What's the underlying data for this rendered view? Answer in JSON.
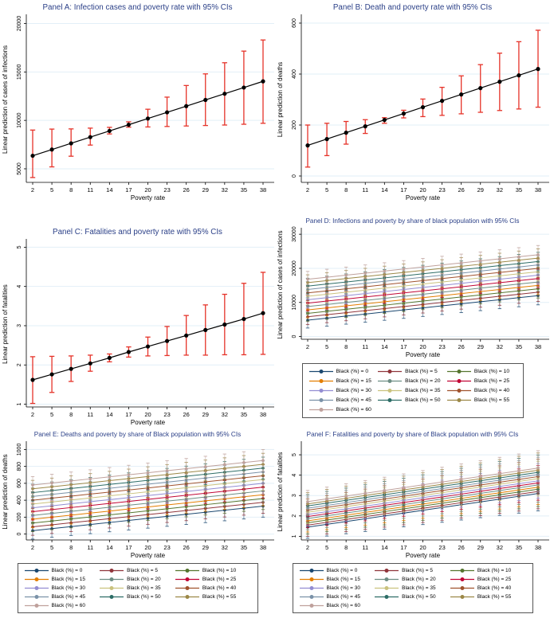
{
  "colors": {
    "background": "#ffffff",
    "title": "#2a3f87",
    "grid": "#e2eff7",
    "axis": "#000000",
    "ci_red": "#e63329",
    "point_black": "#000000"
  },
  "chart_data": [
    {
      "id": "A",
      "type": "ci-line",
      "title": "Panel A: Infection cases and poverty rate with 95% CIs",
      "xlabel": "Poverty rate",
      "ylabel": "Linear prediction of cases of infections",
      "x": [
        2,
        5,
        8,
        11,
        14,
        17,
        20,
        23,
        26,
        29,
        32,
        35,
        38
      ],
      "values": [
        6350,
        6990,
        7630,
        8270,
        8910,
        9550,
        10190,
        10830,
        11470,
        12110,
        12750,
        13390,
        14030
      ],
      "ci_low": [
        4100,
        5200,
        6300,
        7450,
        8600,
        9300,
        9320,
        9370,
        9420,
        9470,
        9520,
        9600,
        9700
      ],
      "ci_high": [
        9000,
        9100,
        9120,
        9200,
        9280,
        9850,
        11150,
        12400,
        13600,
        14800,
        15950,
        17150,
        18300
      ],
      "yticks": [
        5000,
        10000,
        15000,
        20000
      ],
      "ylim": [
        3600,
        20700
      ],
      "ci_color": "#e63329",
      "line_color": "#000000",
      "grid": true
    },
    {
      "id": "B",
      "type": "ci-line",
      "title": "Panel B: Death and poverty rate with 95% CIs",
      "xlabel": "Poverty rate",
      "ylabel": "Linear prediction of deaths",
      "x": [
        2,
        5,
        8,
        11,
        14,
        17,
        20,
        23,
        26,
        29,
        32,
        35,
        38
      ],
      "values": [
        120,
        145,
        170,
        195,
        220,
        245,
        270,
        295,
        320,
        345,
        370,
        395,
        420
      ],
      "ci_low": [
        35,
        80,
        125,
        167,
        207,
        228,
        233,
        238,
        244,
        250,
        257,
        263,
        270
      ],
      "ci_high": [
        200,
        207,
        214,
        221,
        229,
        258,
        302,
        348,
        393,
        437,
        482,
        527,
        572
      ],
      "yticks": [
        0,
        200,
        400,
        600
      ],
      "ylim": [
        -25,
        625
      ],
      "ci_color": "#e63329",
      "line_color": "#000000",
      "grid": true
    },
    {
      "id": "C",
      "type": "ci-line",
      "title": "Panel C: Fatalities and poverty rate with 95% CIs",
      "xlabel": "Poverty rate",
      "ylabel": "Linear prediction of fatalities",
      "x": [
        2,
        5,
        8,
        11,
        14,
        17,
        20,
        23,
        26,
        29,
        32,
        35,
        38
      ],
      "values": [
        1.62,
        1.76,
        1.9,
        2.04,
        2.18,
        2.33,
        2.47,
        2.61,
        2.75,
        2.89,
        3.03,
        3.17,
        3.32
      ],
      "ci_low": [
        1.02,
        1.3,
        1.58,
        1.84,
        2.08,
        2.2,
        2.23,
        2.24,
        2.25,
        2.25,
        2.26,
        2.26,
        2.27
      ],
      "ci_high": [
        2.21,
        2.22,
        2.23,
        2.25,
        2.28,
        2.46,
        2.71,
        2.98,
        3.26,
        3.53,
        3.8,
        4.08,
        4.36
      ],
      "yticks": [
        1,
        2,
        3,
        4,
        5
      ],
      "ylim": [
        0.93,
        5.15
      ],
      "ci_color": "#e63329",
      "line_color": "#000000",
      "grid": true
    },
    {
      "id": "D",
      "type": "multi-line-ci",
      "title": "Panel D: Infections and poverty by share of black population with 95% CIs",
      "xlabel": "Poverty rate",
      "ylabel": "Linear prediction of cases of infections",
      "x": [
        2,
        5,
        8,
        11,
        14,
        17,
        20,
        23,
        26,
        29,
        32,
        35,
        38
      ],
      "yticks": [
        0,
        10000,
        20000,
        30000
      ],
      "ylim": [
        -800,
        31200
      ],
      "ci_hw_start": 2300,
      "ci_hw_end": 2700,
      "series": [
        {
          "label": "Black (%) = 0",
          "color": "#1a476f",
          "start": 4800,
          "end": 12000
        },
        {
          "label": "Black (%) = 5",
          "color": "#90353b",
          "start": 5800,
          "end": 13000
        },
        {
          "label": "Black (%) = 10",
          "color": "#55752f",
          "start": 6800,
          "end": 14000
        },
        {
          "label": "Black (%) = 15",
          "color": "#e37e00",
          "start": 7800,
          "end": 15000
        },
        {
          "label": "Black (%) = 20",
          "color": "#6e8e84",
          "start": 8800,
          "end": 16000
        },
        {
          "label": "Black (%) = 25",
          "color": "#c10534",
          "start": 9800,
          "end": 17000
        },
        {
          "label": "Black (%) = 30",
          "color": "#938dd2",
          "start": 10800,
          "end": 18000
        },
        {
          "label": "Black (%) = 35",
          "color": "#cac27e",
          "start": 11800,
          "end": 19000
        },
        {
          "label": "Black (%) = 40",
          "color": "#a0522d",
          "start": 12800,
          "end": 20000
        },
        {
          "label": "Black (%) = 45",
          "color": "#7b92a8",
          "start": 13800,
          "end": 21000
        },
        {
          "label": "Black (%) = 50",
          "color": "#2d6d66",
          "start": 14800,
          "end": 22000
        },
        {
          "label": "Black (%) = 55",
          "color": "#9c8847",
          "start": 15800,
          "end": 23000
        },
        {
          "label": "Black (%) = 60",
          "color": "#bfa19c",
          "start": 16800,
          "end": 24000
        }
      ],
      "grid": true,
      "legend_position": "below"
    },
    {
      "id": "E",
      "type": "multi-line-ci",
      "title": "Panel E: Deaths and poverty by share of Black population with 95% CIs",
      "xlabel": "Poverty rate",
      "ylabel": "Linear prediction of deaths",
      "x": [
        2,
        5,
        8,
        11,
        14,
        17,
        20,
        23,
        26,
        29,
        32,
        35,
        38
      ],
      "yticks": [
        0,
        200,
        400,
        600,
        800,
        1000
      ],
      "ylim": [
        -70,
        1070
      ],
      "ci_hw_start": 100,
      "ci_hw_end": 130,
      "series": [
        {
          "label": "Black (%) = 0",
          "color": "#1a476f",
          "start": 40,
          "end": 330
        },
        {
          "label": "Black (%) = 5",
          "color": "#90353b",
          "start": 85,
          "end": 375
        },
        {
          "label": "Black (%) = 10",
          "color": "#55752f",
          "start": 130,
          "end": 420
        },
        {
          "label": "Black (%) = 15",
          "color": "#e37e00",
          "start": 175,
          "end": 465
        },
        {
          "label": "Black (%) = 20",
          "color": "#6e8e84",
          "start": 220,
          "end": 510
        },
        {
          "label": "Black (%) = 25",
          "color": "#c10534",
          "start": 265,
          "end": 555
        },
        {
          "label": "Black (%) = 30",
          "color": "#938dd2",
          "start": 310,
          "end": 600
        },
        {
          "label": "Black (%) = 35",
          "color": "#cac27e",
          "start": 355,
          "end": 645
        },
        {
          "label": "Black (%) = 40",
          "color": "#a0522d",
          "start": 400,
          "end": 690
        },
        {
          "label": "Black (%) = 45",
          "color": "#7b92a8",
          "start": 445,
          "end": 735
        },
        {
          "label": "Black (%) = 50",
          "color": "#2d6d66",
          "start": 490,
          "end": 780
        },
        {
          "label": "Black (%) = 55",
          "color": "#9c8847",
          "start": 535,
          "end": 825
        },
        {
          "label": "Black (%) = 60",
          "color": "#bfa19c",
          "start": 580,
          "end": 870
        }
      ],
      "grid": true,
      "legend_position": "below"
    },
    {
      "id": "F",
      "type": "multi-line-ci",
      "title": "Panel F: Fatalities and poverty by share of Black population with 95% CIs",
      "xlabel": "Poverty rate",
      "ylabel": "Linear prediction of fatalities",
      "x": [
        2,
        5,
        8,
        11,
        14,
        17,
        20,
        23,
        26,
        29,
        32,
        35,
        38
      ],
      "yticks": [
        1,
        2,
        3,
        4,
        5
      ],
      "ylim": [
        0.82,
        5.55
      ],
      "ci_hw_start": 0.55,
      "ci_hw_end": 0.85,
      "series": [
        {
          "label": "Black (%) = 0",
          "color": "#1a476f",
          "start": 1.45,
          "end": 3.1
        },
        {
          "label": "Black (%) = 5",
          "color": "#90353b",
          "start": 1.55,
          "end": 3.2
        },
        {
          "label": "Black (%) = 10",
          "color": "#55752f",
          "start": 1.66,
          "end": 3.31
        },
        {
          "label": "Black (%) = 15",
          "color": "#e37e00",
          "start": 1.76,
          "end": 3.41
        },
        {
          "label": "Black (%) = 20",
          "color": "#6e8e84",
          "start": 1.87,
          "end": 3.52
        },
        {
          "label": "Black (%) = 25",
          "color": "#c10534",
          "start": 1.97,
          "end": 3.62
        },
        {
          "label": "Black (%) = 30",
          "color": "#938dd2",
          "start": 2.07,
          "end": 3.72
        },
        {
          "label": "Black (%) = 35",
          "color": "#cac27e",
          "start": 2.18,
          "end": 3.83
        },
        {
          "label": "Black (%) = 40",
          "color": "#a0522d",
          "start": 2.28,
          "end": 3.93
        },
        {
          "label": "Black (%) = 45",
          "color": "#7b92a8",
          "start": 2.38,
          "end": 4.03
        },
        {
          "label": "Black (%) = 50",
          "color": "#2d6d66",
          "start": 2.49,
          "end": 4.14
        },
        {
          "label": "Black (%) = 55",
          "color": "#9c8847",
          "start": 2.59,
          "end": 4.24
        },
        {
          "label": "Black (%) = 60",
          "color": "#bfa19c",
          "start": 2.7,
          "end": 4.35
        }
      ],
      "grid": true,
      "legend_position": "below"
    }
  ]
}
